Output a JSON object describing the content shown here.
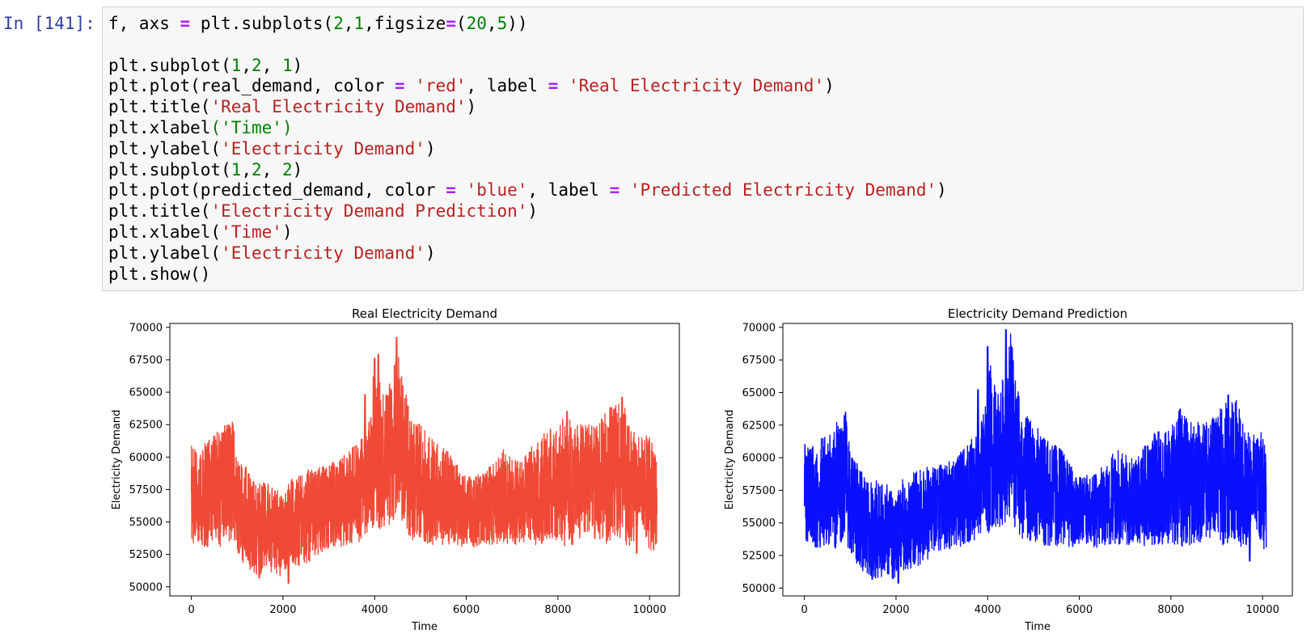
{
  "cell": {
    "prompt": "In [141]:",
    "code_lines": [
      [
        {
          "t": "f, axs ",
          "c": ""
        },
        {
          "t": "=",
          "c": "op"
        },
        {
          "t": " plt.subplots(",
          "c": ""
        },
        {
          "t": "2",
          "c": "num"
        },
        {
          "t": ",",
          "c": ""
        },
        {
          "t": "1",
          "c": "num"
        },
        {
          "t": ",figsize",
          "c": ""
        },
        {
          "t": "=",
          "c": "op"
        },
        {
          "t": "(",
          "c": ""
        },
        {
          "t": "20",
          "c": "num"
        },
        {
          "t": ",",
          "c": ""
        },
        {
          "t": "5",
          "c": "num"
        },
        {
          "t": "))",
          "c": ""
        }
      ],
      [],
      [
        {
          "t": "plt.subplot(",
          "c": ""
        },
        {
          "t": "1",
          "c": "num"
        },
        {
          "t": ",",
          "c": ""
        },
        {
          "t": "2",
          "c": "num"
        },
        {
          "t": ", ",
          "c": ""
        },
        {
          "t": "1",
          "c": "num"
        },
        {
          "t": ")",
          "c": ""
        }
      ],
      [
        {
          "t": "plt.plot(real_demand, color ",
          "c": ""
        },
        {
          "t": "=",
          "c": "op"
        },
        {
          "t": " ",
          "c": ""
        },
        {
          "t": "'red'",
          "c": "str"
        },
        {
          "t": ", label ",
          "c": ""
        },
        {
          "t": "=",
          "c": "op"
        },
        {
          "t": " ",
          "c": ""
        },
        {
          "t": "'Real Electricity Demand'",
          "c": "str"
        },
        {
          "t": ")",
          "c": ""
        }
      ],
      [
        {
          "t": "plt.title(",
          "c": ""
        },
        {
          "t": "'Real Electricity Demand'",
          "c": "str"
        },
        {
          "t": ")",
          "c": ""
        }
      ],
      [
        {
          "t": "plt.xlabel",
          "c": ""
        },
        {
          "t": "('Time')",
          "c": "green"
        }
      ],
      [
        {
          "t": "plt.ylabel(",
          "c": ""
        },
        {
          "t": "'Electricity Demand'",
          "c": "str"
        },
        {
          "t": ")",
          "c": ""
        }
      ],
      [
        {
          "t": "plt.subplot(",
          "c": ""
        },
        {
          "t": "1",
          "c": "num"
        },
        {
          "t": ",",
          "c": ""
        },
        {
          "t": "2",
          "c": "num"
        },
        {
          "t": ", ",
          "c": ""
        },
        {
          "t": "2",
          "c": "num"
        },
        {
          "t": ")",
          "c": ""
        }
      ],
      [
        {
          "t": "plt.plot(predicted_demand, color ",
          "c": ""
        },
        {
          "t": "=",
          "c": "op"
        },
        {
          "t": " ",
          "c": ""
        },
        {
          "t": "'blue'",
          "c": "str"
        },
        {
          "t": ", label ",
          "c": ""
        },
        {
          "t": "=",
          "c": "op"
        },
        {
          "t": " ",
          "c": ""
        },
        {
          "t": "'Predicted Electricity Demand'",
          "c": "str"
        },
        {
          "t": ")",
          "c": ""
        }
      ],
      [
        {
          "t": "plt.title(",
          "c": ""
        },
        {
          "t": "'Electricity Demand Prediction'",
          "c": "str"
        },
        {
          "t": ")",
          "c": ""
        }
      ],
      [
        {
          "t": "plt.xlabel(",
          "c": ""
        },
        {
          "t": "'Time'",
          "c": "str"
        },
        {
          "t": ")",
          "c": ""
        }
      ],
      [
        {
          "t": "plt.ylabel(",
          "c": ""
        },
        {
          "t": "'Electricity Demand'",
          "c": "str"
        },
        {
          "t": ")",
          "c": ""
        }
      ],
      [
        {
          "t": "plt.show()",
          "c": ""
        }
      ]
    ]
  },
  "chart_data": [
    {
      "type": "line",
      "title": "Real Electricity Demand",
      "xlabel": "Time",
      "ylabel": "Electricity Demand",
      "color": "#f04a37",
      "xlim": [
        -470,
        10650
      ],
      "ylim": [
        49300,
        70300
      ],
      "xticks": [
        0,
        2000,
        4000,
        6000,
        8000,
        10000
      ],
      "yticks": [
        50000,
        52500,
        55000,
        57500,
        60000,
        62500,
        65000,
        67500,
        70000
      ],
      "series": [
        {
          "x": [
            0,
            100,
            300,
            500,
            700,
            900,
            1000,
            1200,
            1400,
            1600,
            1800,
            2000,
            2100,
            2300,
            2600,
            3000,
            3400,
            3800,
            3900,
            4000,
            4200,
            4400,
            4500,
            4600,
            4800,
            5000,
            5300,
            5600,
            6000,
            6400,
            6800,
            7200,
            7600,
            8000,
            8200,
            8400,
            8800,
            9200,
            9400,
            9600,
            9800,
            10000,
            10160
          ],
          "lo": [
            52900,
            53500,
            53000,
            53300,
            53000,
            53800,
            52500,
            51500,
            51000,
            50800,
            51200,
            50300,
            51500,
            51300,
            52000,
            52800,
            53200,
            53600,
            55000,
            54200,
            54500,
            55000,
            55500,
            54500,
            53600,
            53600,
            53100,
            53300,
            53000,
            53100,
            53400,
            53100,
            53300,
            53400,
            53000,
            53300,
            53700,
            53100,
            53800,
            52600,
            55600,
            52600,
            53000
          ],
          "hi": [
            60900,
            60600,
            61200,
            61800,
            62500,
            63200,
            60000,
            59300,
            57900,
            58100,
            57800,
            56900,
            58000,
            58600,
            59100,
            59400,
            60300,
            61800,
            63000,
            67900,
            64900,
            66300,
            69200,
            66000,
            63300,
            62500,
            61200,
            60500,
            58400,
            58800,
            60600,
            59600,
            61700,
            62500,
            63500,
            62600,
            62500,
            64100,
            64600,
            62200,
            61600,
            62100,
            59600
          ],
          "base": [
            57000,
            56500,
            56500,
            57000,
            58000,
            58500,
            56000,
            55000,
            54500,
            54000,
            54000,
            53500,
            54500,
            55000,
            55500,
            56500,
            57000,
            58000,
            59000,
            60000,
            59500,
            61000,
            61000,
            59500,
            58500,
            57500,
            57000,
            56500,
            56000,
            56200,
            56300,
            56300,
            57000,
            57500,
            58000,
            58000,
            58500,
            58500,
            58500,
            57500,
            57500,
            57000,
            57000
          ],
          "spikes": [
            [
              4480,
              69200
            ],
            [
              4080,
              67900
            ],
            [
              4000,
              67600
            ],
            [
              3790,
              64800
            ],
            [
              8200,
              63500
            ],
            [
              9400,
              64600
            ],
            [
              9580,
              55600
            ],
            [
              2120,
              50300
            ],
            [
              1480,
              50700
            ],
            [
              9720,
              52600
            ]
          ]
        }
      ]
    },
    {
      "type": "line",
      "title": "Electricity Demand Prediction",
      "xlabel": "Time",
      "ylabel": "Electricity Demand",
      "color": "#0a10ff",
      "xlim": [
        -470,
        10650
      ],
      "ylim": [
        49400,
        70300
      ],
      "xticks": [
        0,
        2000,
        4000,
        6000,
        8000,
        10000
      ],
      "yticks": [
        50000,
        52500,
        55000,
        57500,
        60000,
        62500,
        65000,
        67500,
        70000
      ],
      "series": [
        {
          "x": [
            0,
            100,
            300,
            500,
            700,
            900,
            1000,
            1200,
            1400,
            1600,
            1800,
            2000,
            2100,
            2300,
            2600,
            3000,
            3400,
            3800,
            3900,
            4000,
            4200,
            4400,
            4500,
            4600,
            4800,
            5000,
            5300,
            5600,
            6000,
            6400,
            6800,
            7200,
            7600,
            8000,
            8200,
            8400,
            8800,
            9200,
            9400,
            9600,
            9800,
            10000,
            10080
          ],
          "lo": [
            52900,
            53500,
            53000,
            53300,
            53000,
            53800,
            52500,
            51500,
            51000,
            50700,
            51100,
            50300,
            51400,
            51300,
            52000,
            52800,
            53200,
            53600,
            55000,
            54200,
            54500,
            55000,
            55500,
            54500,
            53600,
            53600,
            53100,
            53300,
            53000,
            53100,
            53400,
            53100,
            53300,
            53400,
            53000,
            53300,
            53700,
            53100,
            53800,
            52600,
            55600,
            52500,
            53000
          ],
          "hi": [
            61100,
            60800,
            61300,
            62000,
            62700,
            63800,
            60300,
            59500,
            58100,
            58300,
            58000,
            57000,
            58200,
            58800,
            59300,
            59500,
            60400,
            62000,
            63200,
            68500,
            65100,
            66500,
            69900,
            66200,
            63500,
            62700,
            61400,
            60700,
            58500,
            58900,
            60800,
            59800,
            61900,
            62700,
            63700,
            62800,
            62700,
            64300,
            64800,
            62400,
            61800,
            62200,
            59900
          ],
          "base": [
            57000,
            56500,
            56500,
            57000,
            58000,
            58500,
            56000,
            55000,
            54500,
            54000,
            54000,
            53500,
            54500,
            55000,
            55500,
            56500,
            57000,
            58000,
            59000,
            60000,
            59500,
            61000,
            61000,
            59500,
            58500,
            57500,
            57000,
            56500,
            56000,
            56200,
            56300,
            56300,
            57000,
            57500,
            58000,
            58000,
            58500,
            58500,
            58500,
            57500,
            57500,
            57000,
            57000
          ],
          "spikes": [
            [
              4400,
              69800
            ],
            [
              4000,
              68500
            ],
            [
              3790,
              65200
            ],
            [
              8200,
              63700
            ],
            [
              9250,
              64800
            ],
            [
              9580,
              55700
            ],
            [
              2050,
              50400
            ],
            [
              1480,
              50700
            ],
            [
              9720,
              52100
            ]
          ]
        }
      ]
    }
  ]
}
